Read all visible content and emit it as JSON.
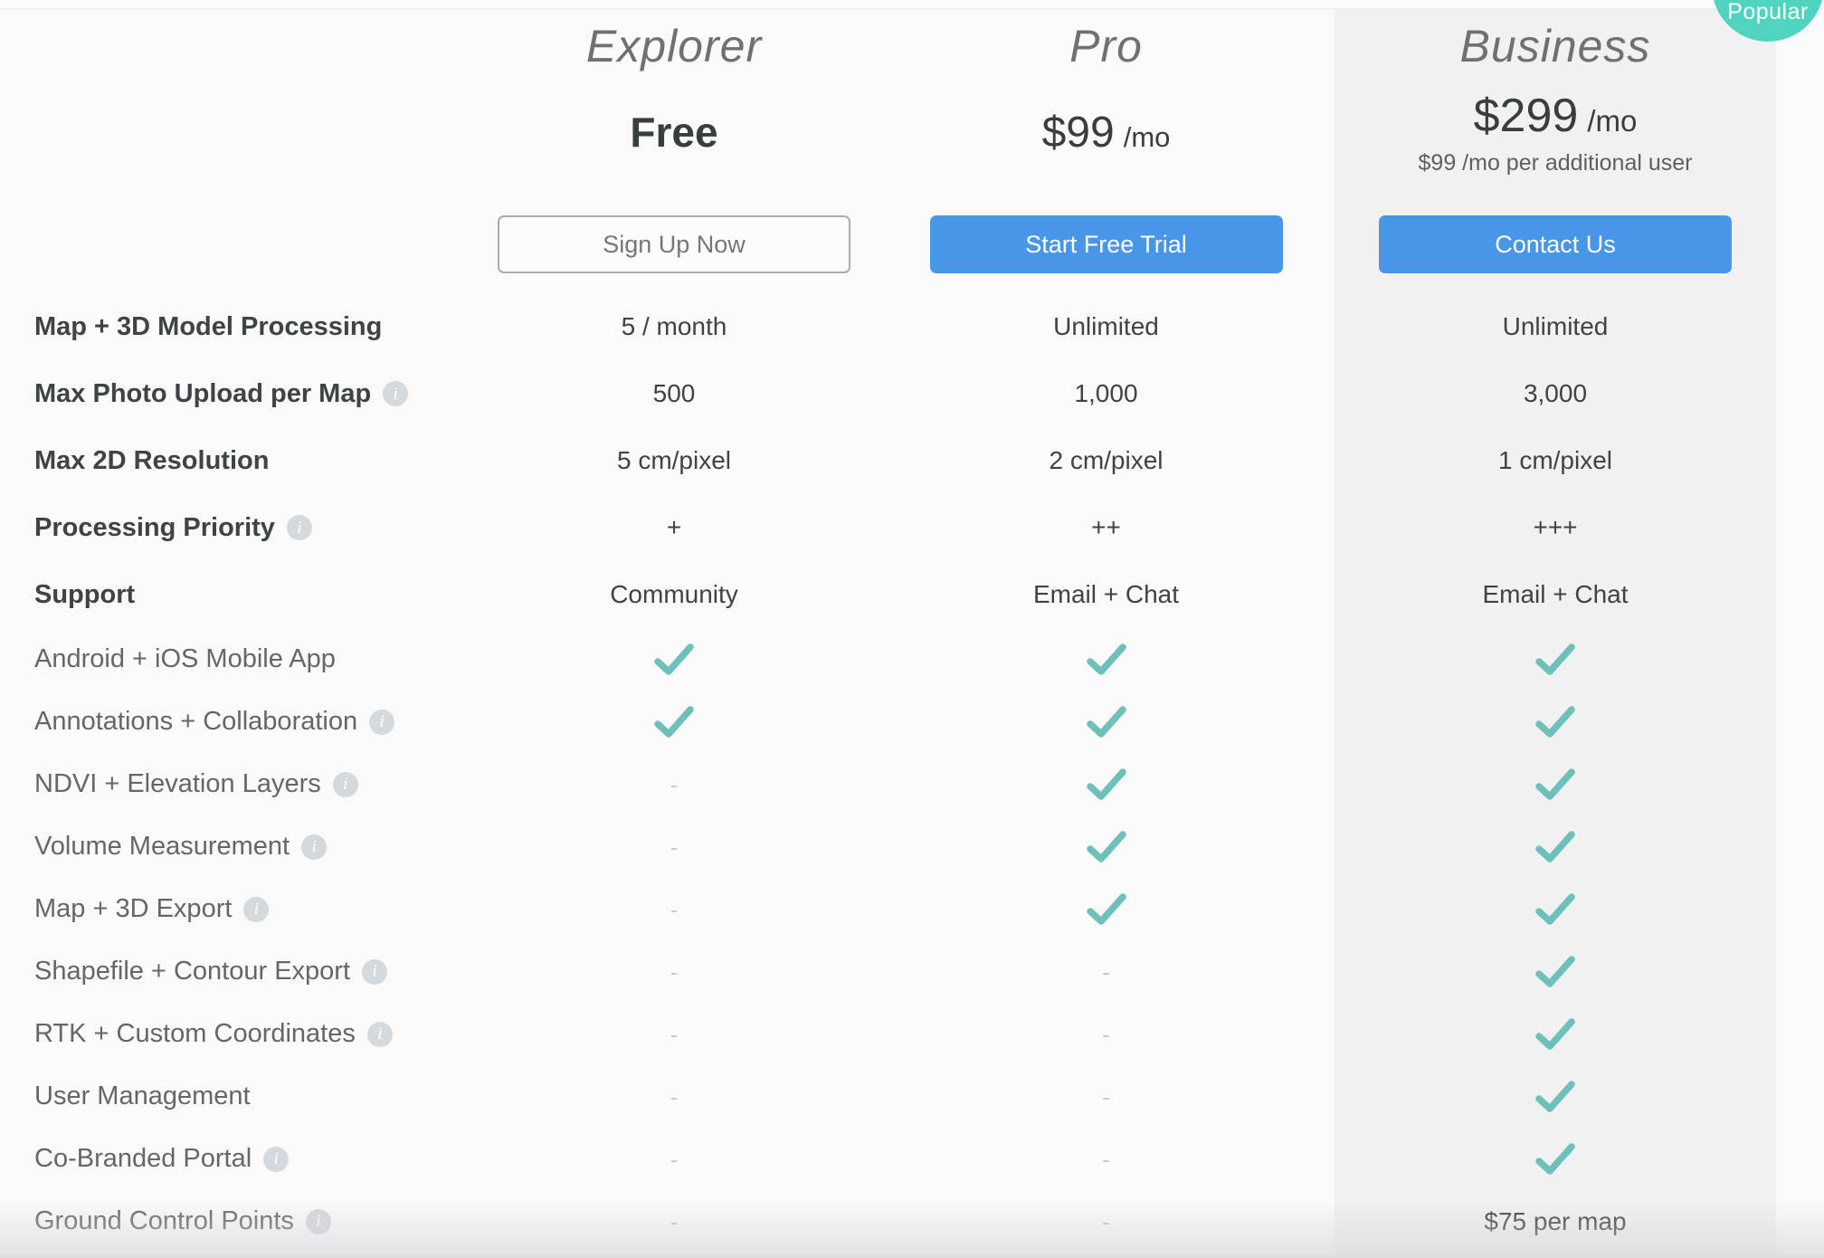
{
  "badge": {
    "label": "Popular"
  },
  "colors": {
    "accent_blue": "#4796e8",
    "check_teal": "#6ec1ba",
    "badge_teal": "#50d4bf",
    "highlight_band": "#f1f1f2",
    "page_background": "#fafafa"
  },
  "glyphs": {
    "dash": "-",
    "info": "i"
  },
  "plans": [
    {
      "name": "Explorer",
      "price": "Free",
      "cta": "Sign Up Now"
    },
    {
      "name": "Pro",
      "price": "$99",
      "period": "/mo",
      "cta": "Start Free Trial"
    },
    {
      "name": "Business",
      "price": "$299",
      "period": "/mo",
      "subnote": "$99 /mo per additional user",
      "cta": "Contact Us"
    }
  ],
  "rows": [
    {
      "label": "Map + 3D Model Processing",
      "info": false,
      "group": "spec",
      "values": [
        "5 / month",
        "Unlimited",
        "Unlimited"
      ]
    },
    {
      "label": "Max Photo Upload per Map",
      "info": true,
      "group": "spec",
      "values": [
        "500",
        "1,000",
        "3,000"
      ]
    },
    {
      "label": "Max 2D Resolution",
      "info": false,
      "group": "spec",
      "values": [
        "5 cm/pixel",
        "2 cm/pixel",
        "1 cm/pixel"
      ]
    },
    {
      "label": "Processing Priority",
      "info": true,
      "group": "spec",
      "values": [
        "+",
        "++",
        "+++"
      ]
    },
    {
      "label": "Support",
      "info": false,
      "group": "spec",
      "values": [
        "Community",
        "Email + Chat",
        "Email + Chat"
      ]
    },
    {
      "label": "Android + iOS Mobile App",
      "info": false,
      "group": "feat",
      "values": [
        "check",
        "check",
        "check"
      ]
    },
    {
      "label": "Annotations + Collaboration",
      "info": true,
      "group": "feat",
      "values": [
        "check",
        "check",
        "check"
      ]
    },
    {
      "label": "NDVI + Elevation Layers",
      "info": true,
      "group": "feat",
      "values": [
        "dash",
        "check",
        "check"
      ]
    },
    {
      "label": "Volume Measurement",
      "info": true,
      "group": "feat",
      "values": [
        "dash",
        "check",
        "check"
      ]
    },
    {
      "label": "Map + 3D Export",
      "info": true,
      "group": "feat",
      "values": [
        "dash",
        "check",
        "check"
      ]
    },
    {
      "label": "Shapefile + Contour Export",
      "info": true,
      "group": "feat",
      "values": [
        "dash",
        "dash",
        "check"
      ]
    },
    {
      "label": "RTK + Custom Coordinates",
      "info": true,
      "group": "feat",
      "values": [
        "dash",
        "dash",
        "check"
      ]
    },
    {
      "label": "User Management",
      "info": false,
      "group": "feat",
      "values": [
        "dash",
        "dash",
        "check"
      ]
    },
    {
      "label": "Co-Branded Portal",
      "info": true,
      "group": "feat",
      "values": [
        "dash",
        "dash",
        "check"
      ]
    },
    {
      "label": "Ground Control Points",
      "info": true,
      "group": "feat",
      "values": [
        "dash",
        "dash",
        "$75 per map"
      ]
    }
  ]
}
